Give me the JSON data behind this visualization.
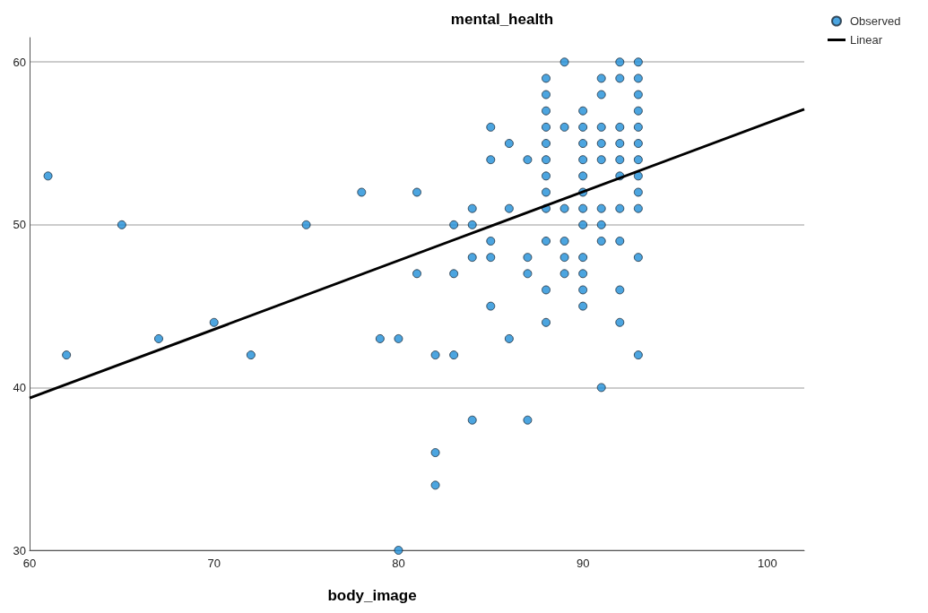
{
  "chart_data": {
    "type": "scatter",
    "title": "mental_health",
    "xlabel": "body_image",
    "xlim": [
      60,
      102
    ],
    "ylim": [
      30,
      61.5
    ],
    "xticks": [
      60,
      70,
      80,
      90,
      100
    ],
    "yticks": [
      30,
      40,
      50,
      60
    ],
    "grid": "y",
    "legend": "top right",
    "marker": "circle",
    "series": [
      {
        "name": "Observed",
        "color": "#1f8fd8",
        "x": [
          61,
          62,
          65,
          67,
          70,
          72,
          75,
          78,
          79,
          80,
          80,
          81,
          81,
          82,
          82,
          82,
          83,
          83,
          83,
          84,
          84,
          84,
          84,
          85,
          85,
          85,
          85,
          85,
          86,
          86,
          86,
          87,
          87,
          87,
          87,
          88,
          88,
          88,
          88,
          88,
          88,
          88,
          88,
          88,
          88,
          88,
          88,
          89,
          89,
          89,
          89,
          89,
          89,
          90,
          90,
          90,
          90,
          90,
          90,
          90,
          90,
          90,
          90,
          90,
          90,
          91,
          91,
          91,
          91,
          91,
          91,
          91,
          91,
          91,
          92,
          92,
          92,
          92,
          92,
          92,
          92,
          92,
          92,
          92,
          93,
          93,
          93,
          93,
          93,
          93,
          93,
          93,
          93,
          93,
          93,
          93
        ],
        "values": [
          53,
          42,
          50,
          43,
          44,
          42,
          50,
          52,
          43,
          43,
          30,
          52,
          47,
          42,
          36,
          34,
          50,
          47,
          42,
          51,
          50,
          48,
          38,
          56,
          54,
          49,
          48,
          45,
          55,
          51,
          43,
          54,
          48,
          47,
          38,
          59,
          58,
          57,
          56,
          55,
          54,
          53,
          52,
          51,
          49,
          46,
          44,
          60,
          56,
          51,
          49,
          48,
          47,
          57,
          56,
          55,
          54,
          53,
          52,
          51,
          50,
          48,
          47,
          46,
          45,
          59,
          58,
          56,
          55,
          54,
          51,
          50,
          49,
          40,
          60,
          59,
          56,
          55,
          54,
          53,
          51,
          49,
          46,
          44,
          60,
          59,
          58,
          57,
          56,
          55,
          54,
          53,
          52,
          51,
          48,
          42
        ]
      },
      {
        "name": "Linear",
        "type": "line",
        "color": "#000000",
        "x": [
          60,
          102
        ],
        "values": [
          39.35,
          57.1
        ],
        "marker": "none"
      }
    ]
  }
}
